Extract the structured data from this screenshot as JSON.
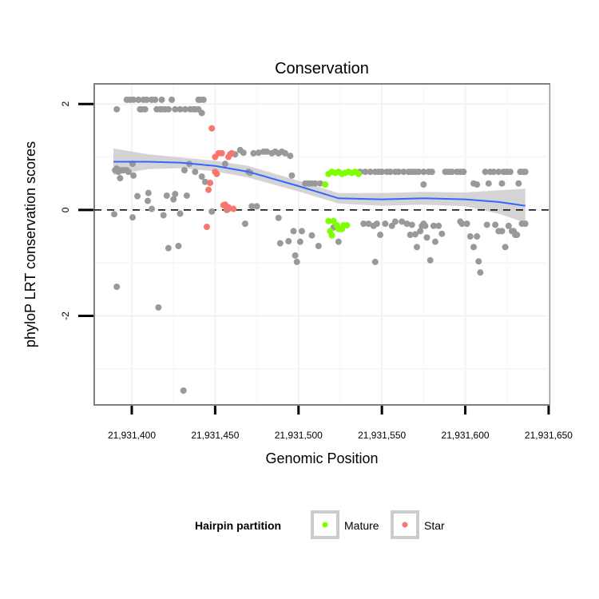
{
  "chart_data": {
    "type": "scatter",
    "title": "Conservation",
    "xlabel": "Genomic Position",
    "ylabel": "phyloP LRT conservation scores",
    "x_base": 21931400,
    "x_note": "point x values are offsets from x_base",
    "xlim": [
      21931377.5,
      21931650.5
    ],
    "ylim": [
      -3.68,
      2.38
    ],
    "x_ticks": [
      21931400,
      21931450,
      21931500,
      21931550,
      21931600,
      21931650
    ],
    "x_tick_labels": [
      "21,931,400",
      "21,931,450",
      "21,931,500",
      "21,931,550",
      "21,931,600",
      "21,931,650"
    ],
    "y_ticks": [
      2,
      0,
      -2
    ],
    "y_tick_labels": [
      "2",
      "0",
      "-2"
    ],
    "grid": true,
    "reference_line": {
      "y": 0,
      "style": "dashed"
    },
    "colors": {
      "other": "#999999",
      "Mature": "#7FFF00",
      "Star": "#F8766D",
      "smooth": "#3366FF",
      "band": "#CCCCCC"
    },
    "legend": {
      "title": "Hairpin partition",
      "position": "bottom",
      "entries": [
        "Mature",
        "Star"
      ]
    },
    "series": [
      {
        "name": "other",
        "points": [
          [
            -3,
            2.08
          ],
          [
            -1,
            2.08
          ],
          [
            1,
            2.08
          ],
          [
            4,
            2.08
          ],
          [
            7,
            2.08
          ],
          [
            9,
            2.08
          ],
          [
            12,
            2.08
          ],
          [
            14,
            2.08
          ],
          [
            18,
            2.08
          ],
          [
            24,
            2.08
          ],
          [
            40,
            2.08
          ],
          [
            41,
            2.08
          ],
          [
            43,
            2.08
          ],
          [
            -9,
            1.9
          ],
          [
            5,
            1.9
          ],
          [
            6,
            1.9
          ],
          [
            8,
            1.9
          ],
          [
            15,
            1.9
          ],
          [
            17,
            1.9
          ],
          [
            18,
            1.9
          ],
          [
            20,
            1.9
          ],
          [
            22,
            1.9
          ],
          [
            26,
            1.9
          ],
          [
            29,
            1.9
          ],
          [
            32,
            1.9
          ],
          [
            35,
            1.9
          ],
          [
            37,
            1.9
          ],
          [
            38,
            1.9
          ],
          [
            40,
            1.9
          ],
          [
            42,
            1.83
          ],
          [
            -10.5,
            -0.08
          ],
          [
            -10,
            0.75
          ],
          [
            -9,
            -1.45
          ],
          [
            -9,
            0.78
          ],
          [
            -8,
            0.72
          ],
          [
            -7,
            0.6
          ],
          [
            -6,
            0.75
          ],
          [
            -5,
            0.75
          ],
          [
            -3,
            0.75
          ],
          [
            -2,
            0.72
          ],
          [
            0.5,
            0.87
          ],
          [
            0.5,
            -0.14
          ],
          [
            1,
            0.65
          ],
          [
            3.4,
            0.26
          ],
          [
            9.6,
            0.17
          ],
          [
            10,
            0.32
          ],
          [
            12,
            0.02
          ],
          [
            16,
            -1.84
          ],
          [
            19,
            -0.1
          ],
          [
            21,
            0.27
          ],
          [
            22,
            -0.72
          ],
          [
            25,
            0.2
          ],
          [
            26,
            0.3
          ],
          [
            28,
            -0.68
          ],
          [
            29,
            -0.07
          ],
          [
            31,
            -3.41
          ],
          [
            31.6,
            0.75
          ],
          [
            33,
            0.27
          ],
          [
            34.5,
            0.87
          ],
          [
            38,
            0.72
          ],
          [
            42,
            0.63
          ],
          [
            44,
            0.53
          ],
          [
            48,
            -0.03
          ],
          [
            56,
            0.87
          ],
          [
            57,
            0.0
          ],
          [
            58,
            0.02
          ],
          [
            59,
            1.05
          ],
          [
            62,
            1.05
          ],
          [
            65,
            1.13
          ],
          [
            67,
            1.08
          ],
          [
            68,
            -0.26
          ],
          [
            70,
            0.72
          ],
          [
            71,
            0.7
          ],
          [
            72,
            0.07
          ],
          [
            73,
            1.07
          ],
          [
            75,
            0.07
          ],
          [
            76,
            1.08
          ],
          [
            79,
            1.1
          ],
          [
            81,
            1.1
          ],
          [
            84,
            1.07
          ],
          [
            86,
            1.1
          ],
          [
            88,
            1.07
          ],
          [
            88,
            -0.15
          ],
          [
            89,
            -0.63
          ],
          [
            90,
            1.1
          ],
          [
            92,
            1.07
          ],
          [
            94,
            -0.59
          ],
          [
            95,
            1.02
          ],
          [
            96,
            0.65
          ],
          [
            97,
            -0.4
          ],
          [
            98,
            -0.86
          ],
          [
            99,
            -0.98
          ],
          [
            101,
            -0.6
          ],
          [
            102,
            -0.4
          ],
          [
            104,
            0.5
          ],
          [
            106,
            0.5
          ],
          [
            108,
            0.5
          ],
          [
            108,
            -0.48
          ],
          [
            110,
            0.5
          ],
          [
            112,
            -0.68
          ],
          [
            113,
            0.5
          ],
          [
            121,
            -0.33
          ],
          [
            124,
            -0.6
          ],
          [
            137,
            0.72
          ],
          [
            140,
            0.72
          ],
          [
            143,
            0.72
          ],
          [
            146,
            0.72
          ],
          [
            148,
            0.72
          ],
          [
            139,
            -0.26
          ],
          [
            142,
            -0.26
          ],
          [
            145,
            -0.3
          ],
          [
            147,
            -0.26
          ],
          [
            149,
            -0.47
          ],
          [
            146,
            -0.98
          ],
          [
            150,
            0.72
          ],
          [
            153,
            0.72
          ],
          [
            155,
            0.72
          ],
          [
            158,
            0.72
          ],
          [
            160,
            0.72
          ],
          [
            163,
            0.72
          ],
          [
            152,
            -0.26
          ],
          [
            156,
            -0.3
          ],
          [
            158,
            -0.22
          ],
          [
            162,
            -0.22
          ],
          [
            165,
            -0.26
          ],
          [
            167,
            -0.47
          ],
          [
            168,
            -0.28
          ],
          [
            170,
            -0.46
          ],
          [
            171,
            -0.7
          ],
          [
            173,
            -0.4
          ],
          [
            174,
            -0.3
          ],
          [
            175,
            -0.26
          ],
          [
            166,
            0.72
          ],
          [
            168,
            0.72
          ],
          [
            170,
            0.72
          ],
          [
            172,
            0.72
          ],
          [
            175,
            0.72
          ],
          [
            178,
            0.72
          ],
          [
            180,
            0.72
          ],
          [
            177,
            -0.52
          ],
          [
            175,
            0.48
          ],
          [
            176,
            -0.3
          ],
          [
            181,
            -0.3
          ],
          [
            184,
            -0.3
          ],
          [
            186,
            -0.45
          ],
          [
            179,
            -0.95
          ],
          [
            182,
            -0.6
          ],
          [
            188,
            0.72
          ],
          [
            190,
            0.72
          ],
          [
            192,
            0.72
          ],
          [
            195,
            0.72
          ],
          [
            197,
            0.72
          ],
          [
            199,
            0.72
          ],
          [
            197,
            -0.22
          ],
          [
            198,
            -0.26
          ],
          [
            201,
            -0.26
          ],
          [
            203,
            -0.5
          ],
          [
            205,
            -0.7
          ],
          [
            205,
            0.5
          ],
          [
            207,
            0.48
          ],
          [
            207,
            -0.5
          ],
          [
            208,
            -0.97
          ],
          [
            209,
            -1.18
          ],
          [
            212,
            0.72
          ],
          [
            215,
            0.72
          ],
          [
            217,
            0.72
          ],
          [
            220,
            0.72
          ],
          [
            223,
            0.72
          ],
          [
            225,
            0.72
          ],
          [
            227,
            0.72
          ],
          [
            214,
            0.5
          ],
          [
            213,
            -0.28
          ],
          [
            218,
            -0.28
          ],
          [
            220,
            -0.4
          ],
          [
            222,
            -0.4
          ],
          [
            224,
            -0.7
          ],
          [
            226,
            -0.3
          ],
          [
            228,
            -0.4
          ],
          [
            229,
            -0.4
          ],
          [
            230,
            -0.47
          ],
          [
            231,
            -0.47
          ],
          [
            222,
            0.5
          ],
          [
            232,
            0.5
          ],
          [
            233,
            0.72
          ],
          [
            235,
            0.72
          ],
          [
            236,
            0.72
          ],
          [
            234,
            -0.26
          ],
          [
            236,
            -0.26
          ]
        ]
      },
      {
        "name": "Mature",
        "points": [
          [
            116,
            0.48
          ],
          [
            118,
            0.68
          ],
          [
            120,
            0.72
          ],
          [
            122,
            0.7
          ],
          [
            124,
            0.72
          ],
          [
            126,
            0.68
          ],
          [
            128,
            0.7
          ],
          [
            130,
            0.72
          ],
          [
            132,
            0.7
          ],
          [
            134,
            0.72
          ],
          [
            136,
            0.68
          ],
          [
            118,
            -0.21
          ],
          [
            119,
            -0.4
          ],
          [
            120,
            -0.48
          ],
          [
            121,
            -0.21
          ],
          [
            123,
            -0.29
          ],
          [
            124,
            -0.36
          ],
          [
            126,
            -0.36
          ],
          [
            127,
            -0.29
          ],
          [
            129,
            -0.29
          ]
        ]
      },
      {
        "name": "Star",
        "points": [
          [
            48,
            1.54
          ],
          [
            50,
            1.0
          ],
          [
            52,
            1.07
          ],
          [
            54,
            1.07
          ],
          [
            58,
            1.0
          ],
          [
            60,
            1.07
          ],
          [
            50,
            0.72
          ],
          [
            51,
            0.68
          ],
          [
            47,
            0.51
          ],
          [
            46,
            0.38
          ],
          [
            55,
            0.09
          ],
          [
            56,
            0.1
          ],
          [
            57,
            0.02
          ],
          [
            58,
            0.05
          ],
          [
            61,
            0.02
          ],
          [
            45,
            -0.32
          ]
        ]
      }
    ],
    "smooth": {
      "x": [
        -11,
        10,
        30,
        50,
        70,
        100,
        124,
        150,
        175,
        200,
        220,
        236
      ],
      "y": [
        0.91,
        0.91,
        0.89,
        0.83,
        0.72,
        0.45,
        0.22,
        0.2,
        0.22,
        0.2,
        0.15,
        0.08
      ],
      "se": [
        0.25,
        0.14,
        0.1,
        0.1,
        0.11,
        0.1,
        0.1,
        0.12,
        0.12,
        0.13,
        0.22,
        0.32
      ]
    }
  }
}
